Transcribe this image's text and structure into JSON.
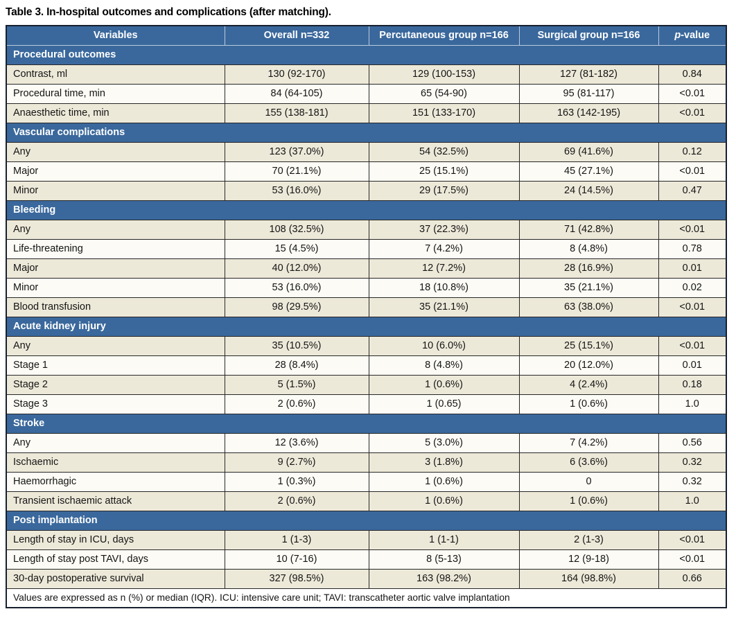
{
  "title": "Table 3. In-hospital outcomes and complications (after matching).",
  "colors": {
    "header_blue": "#3A689C",
    "row_beige": "#EDE9D9",
    "row_white": "#FCFBF5",
    "border_dark": "#262626",
    "outer_border": "#16202E",
    "header_divider": "#BCCBDD"
  },
  "table": {
    "columns": [
      {
        "label": "Variables"
      },
      {
        "label": "Overall n=332"
      },
      {
        "label": "Percutaneous group n=166"
      },
      {
        "label": "Surgical group n=166"
      },
      {
        "label_italic": "p",
        "label_rest": "-value"
      }
    ],
    "sections": [
      {
        "header": "Procedural outcomes",
        "rows": [
          {
            "label": "Contrast, ml",
            "values": [
              "130 (92-170)",
              "129 (100-153)",
              "127 (81-182)",
              "0.84"
            ]
          },
          {
            "label": "Procedural time, min",
            "values": [
              "84 (64-105)",
              "65 (54-90)",
              "95 (81-117)",
              "<0.01"
            ]
          },
          {
            "label": "Anaesthetic time, min",
            "values": [
              "155 (138-181)",
              "151 (133-170)",
              "163 (142-195)",
              "<0.01"
            ]
          }
        ]
      },
      {
        "header": "Vascular complications",
        "rows": [
          {
            "label": "Any",
            "values": [
              "123 (37.0%)",
              "54 (32.5%)",
              "69 (41.6%)",
              "0.12"
            ]
          },
          {
            "label": "Major",
            "values": [
              "70 (21.1%)",
              "25 (15.1%)",
              "45 (27.1%)",
              "<0.01"
            ]
          },
          {
            "label": "Minor",
            "values": [
              "53 (16.0%)",
              "29 (17.5%)",
              "24 (14.5%)",
              "0.47"
            ]
          }
        ]
      },
      {
        "header": "Bleeding",
        "rows": [
          {
            "label": "Any",
            "values": [
              "108 (32.5%)",
              "37 (22.3%)",
              "71 (42.8%)",
              "<0.01"
            ]
          },
          {
            "label": "Life-threatening",
            "values": [
              "15 (4.5%)",
              "7 (4.2%)",
              "8 (4.8%)",
              "0.78"
            ]
          },
          {
            "label": "Major",
            "values": [
              "40 (12.0%)",
              "12 (7.2%)",
              "28 (16.9%)",
              "0.01"
            ]
          },
          {
            "label": "Minor",
            "values": [
              "53 (16.0%)",
              "18 (10.8%)",
              "35 (21.1%)",
              "0.02"
            ]
          },
          {
            "label": "Blood transfusion",
            "values": [
              "98 (29.5%)",
              "35 (21.1%)",
              "63 (38.0%)",
              "<0.01"
            ]
          }
        ]
      },
      {
        "header": "Acute kidney injury",
        "rows": [
          {
            "label": "Any",
            "values": [
              "35 (10.5%)",
              "10 (6.0%)",
              "25 (15.1%)",
              "<0.01"
            ]
          },
          {
            "label": "Stage 1",
            "values": [
              "28 (8.4%)",
              "8 (4.8%)",
              "20 (12.0%)",
              "0.01"
            ]
          },
          {
            "label": "Stage 2",
            "values": [
              "5 (1.5%)",
              "1 (0.6%)",
              "4 (2.4%)",
              "0.18"
            ]
          },
          {
            "label": "Stage 3",
            "values": [
              "2 (0.6%)",
              "1 (0.65)",
              "1 (0.6%)",
              "1.0"
            ]
          }
        ]
      },
      {
        "header": "Stroke",
        "rows": [
          {
            "label": "Any",
            "values": [
              "12 (3.6%)",
              "5 (3.0%)",
              "7 (4.2%)",
              "0.56"
            ]
          },
          {
            "label": "Ischaemic",
            "values": [
              "9 (2.7%)",
              "3 (1.8%)",
              "6 (3.6%)",
              "0.32"
            ]
          },
          {
            "label": "Haemorrhagic",
            "values": [
              "1 (0.3%)",
              "1 (0.6%)",
              "0",
              "0.32"
            ]
          },
          {
            "label": "Transient ischaemic attack",
            "values": [
              "2 (0.6%)",
              "1 (0.6%)",
              "1 (0.6%)",
              "1.0"
            ]
          }
        ]
      },
      {
        "header": "Post implantation",
        "rows": [
          {
            "label": "Length of stay in ICU, days",
            "values": [
              "1 (1-3)",
              "1 (1-1)",
              "2 (1-3)",
              "<0.01"
            ]
          },
          {
            "label": "Length of stay post TAVI, days",
            "values": [
              "10 (7-16)",
              "8 (5-13)",
              "12 (9-18)",
              "<0.01"
            ]
          },
          {
            "label": "30-day postoperative survival",
            "values": [
              "327 (98.5%)",
              "163 (98.2%)",
              "164 (98.8%)",
              "0.66"
            ]
          }
        ]
      }
    ],
    "footnote": "Values are expressed as n (%) or median (IQR). ICU: intensive care unit; TAVI: transcatheter aortic valve implantation"
  }
}
